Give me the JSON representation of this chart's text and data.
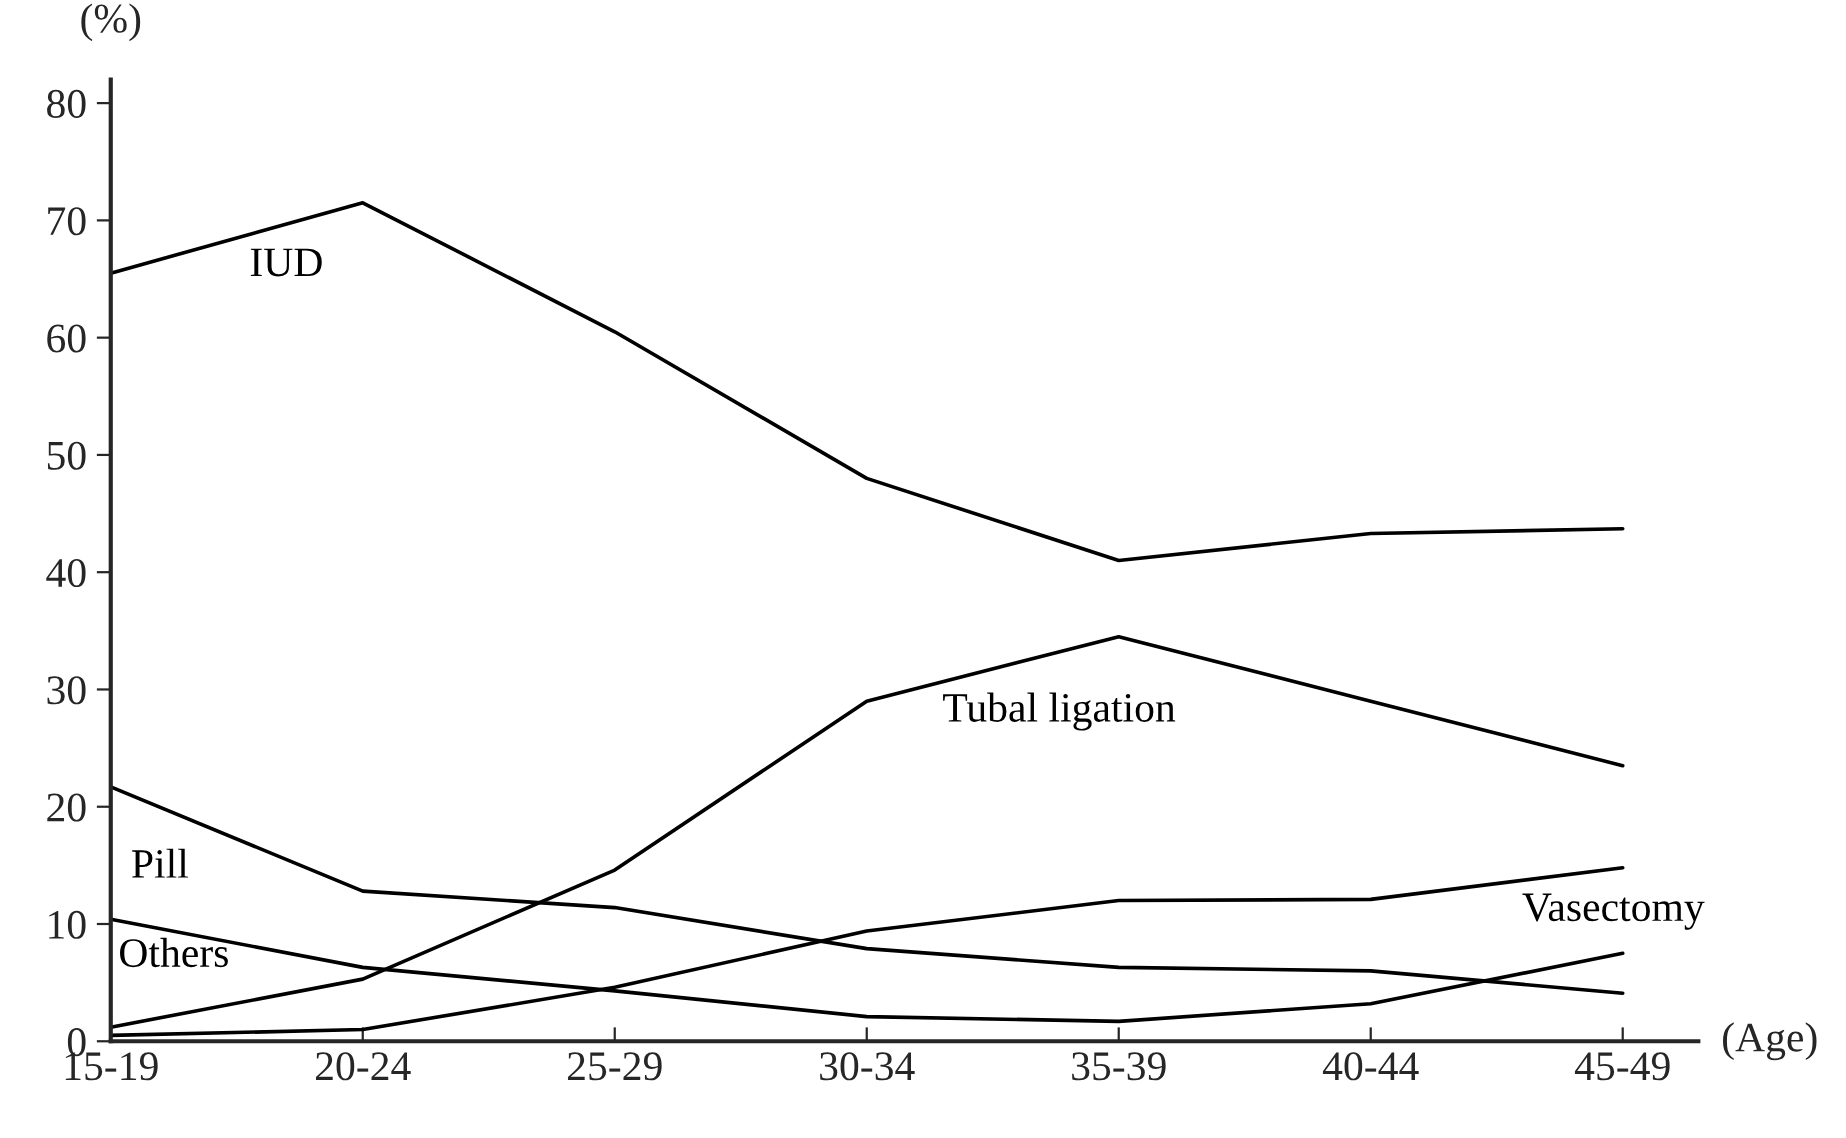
{
  "chart_data": {
    "type": "line",
    "xlabel": "(Age)",
    "ylabel": "(%)",
    "categories": [
      "15-19",
      "20-24",
      "25-29",
      "30-34",
      "35-39",
      "40-44",
      "45-49"
    ],
    "series": [
      {
        "name": "IUD",
        "color": "#000000",
        "values": [
          65.5,
          71.5,
          60.5,
          48,
          41,
          43.3,
          43.7
        ]
      },
      {
        "name": "Tubal ligation",
        "color": "#000000",
        "values": [
          1.2,
          5.3,
          14.6,
          29,
          34.5,
          29,
          23.5
        ]
      },
      {
        "name": "Pill",
        "color": "#000000",
        "values": [
          21.7,
          12.8,
          11.4,
          7.9,
          6.3,
          6,
          4.1
        ]
      },
      {
        "name": "Others",
        "color": "#000000",
        "values": [
          10.4,
          6.3,
          4.3,
          2.1,
          1.7,
          3.2,
          7.5
        ]
      },
      {
        "name": "Vasectomy",
        "color": "#000000",
        "values": [
          0.5,
          1,
          4.6,
          9.4,
          12,
          12.1,
          14.8
        ]
      }
    ],
    "ylim": [
      0,
      82
    ],
    "yticks": [
      0,
      10,
      20,
      30,
      40,
      50,
      60,
      70,
      80
    ],
    "grid": false,
    "legend": false,
    "marker": "none",
    "line_style": "solid"
  }
}
